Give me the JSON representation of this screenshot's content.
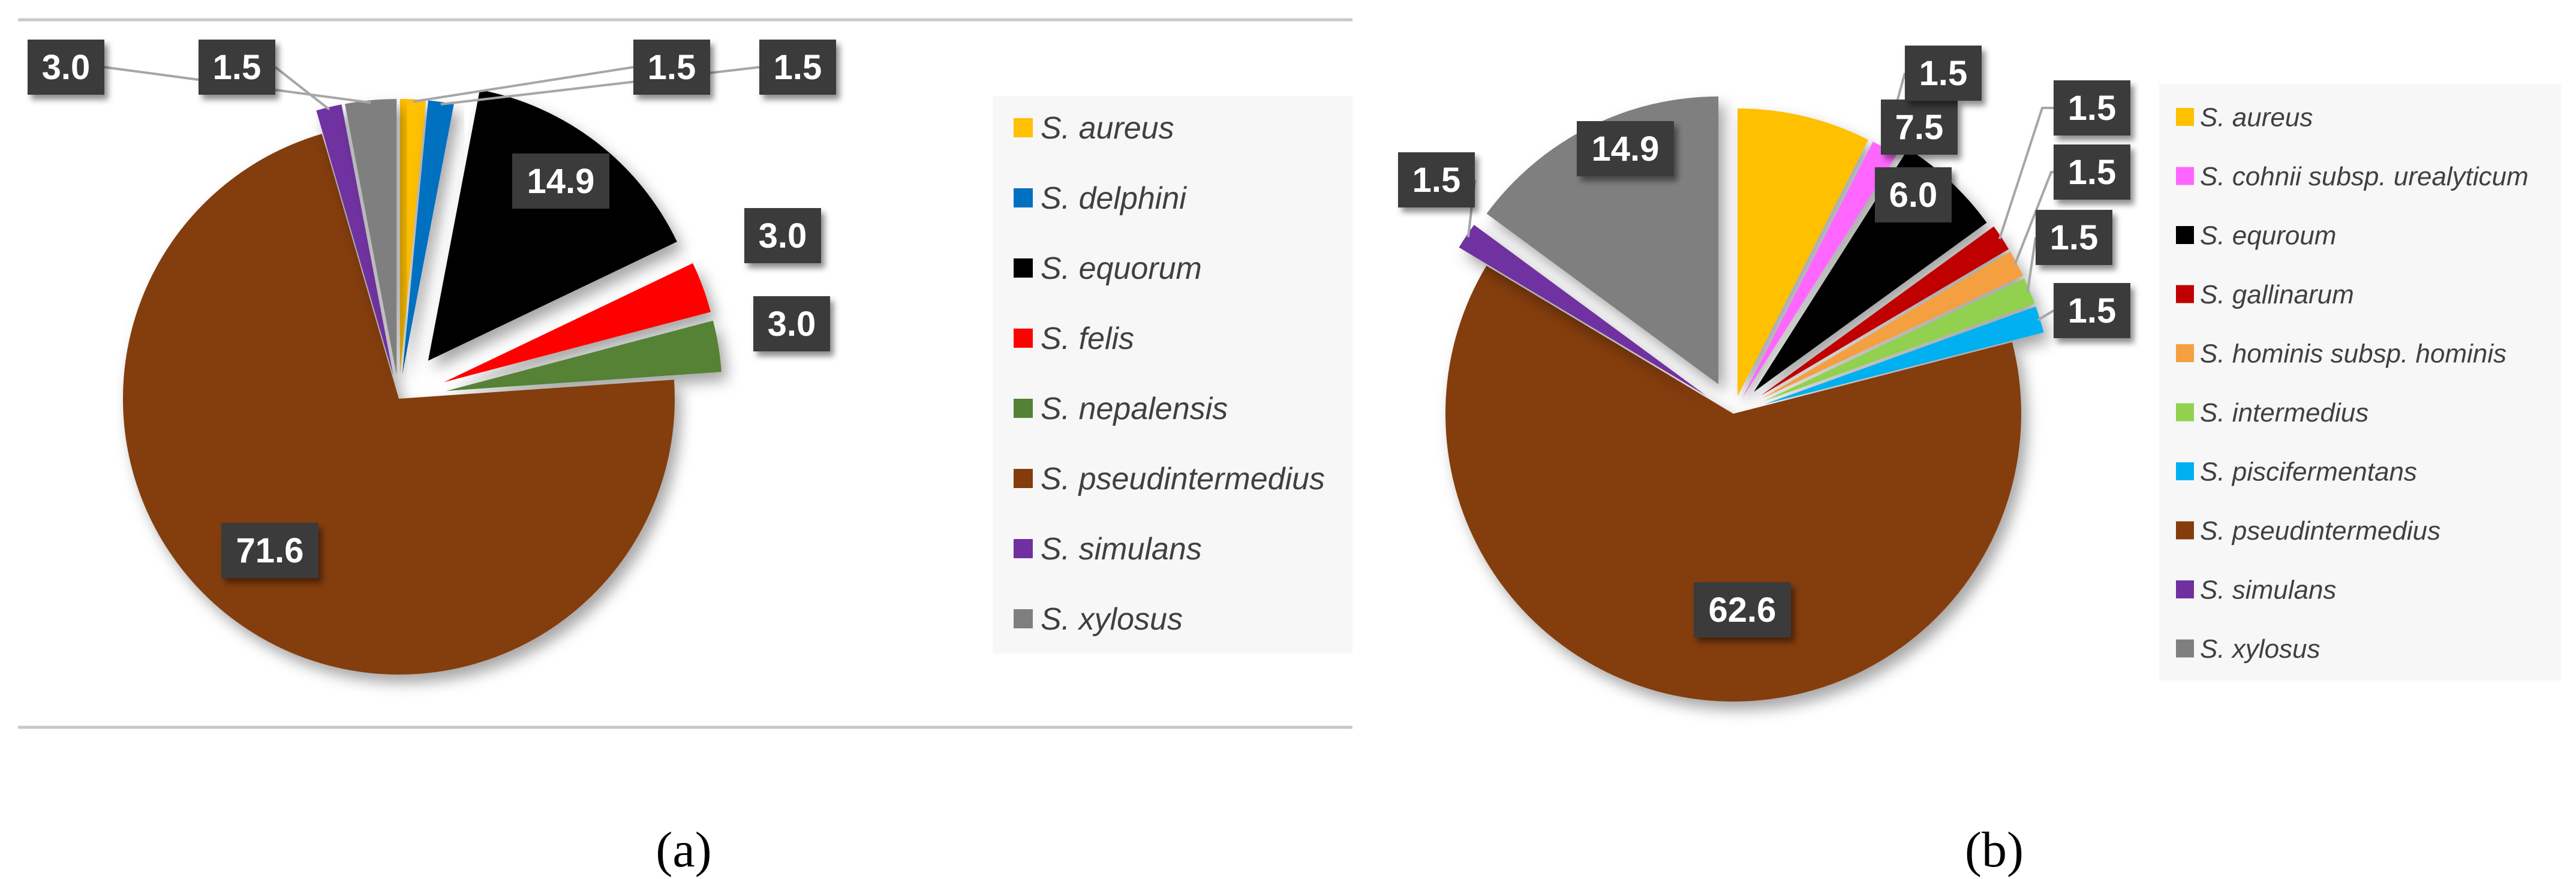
{
  "chart_data": [
    {
      "type": "pie",
      "panel_label": "(a)",
      "legend_position": "right",
      "slices": [
        {
          "name": "S. aureus",
          "value": 1.5,
          "color": "#FFC000"
        },
        {
          "name": "S. delphini",
          "value": 1.5,
          "color": "#0070C0"
        },
        {
          "name": "S. equorum",
          "value": 14.9,
          "color": "#000000"
        },
        {
          "name": "S. felis",
          "value": 3.0,
          "color": "#FF0000"
        },
        {
          "name": "S. nepalensis",
          "value": 3.0,
          "color": "#548235"
        },
        {
          "name": "S. pseudintermedius",
          "value": 71.6,
          "color": "#843C0C"
        },
        {
          "name": "S. simulans",
          "value": 1.5,
          "color": "#7030A0"
        },
        {
          "name": "S. xylosus",
          "value": 3.0,
          "color": "#7F7F7F"
        }
      ]
    },
    {
      "type": "pie",
      "panel_label": "(b)",
      "legend_position": "right",
      "slices": [
        {
          "name": "S. aureus",
          "value": 7.5,
          "color": "#FFC000"
        },
        {
          "name": "S. cohnii subsp. urealyticum",
          "value": 1.5,
          "color": "#FF66FF"
        },
        {
          "name": "S. equroum",
          "value": 6.0,
          "color": "#000000"
        },
        {
          "name": "S. gallinarum",
          "value": 1.5,
          "color": "#C00000"
        },
        {
          "name": "S. hominis subsp. hominis",
          "value": 1.5,
          "color": "#F4A040"
        },
        {
          "name": "S. intermedius",
          "value": 1.5,
          "color": "#92D050"
        },
        {
          "name": "S. piscifermentans",
          "value": 1.5,
          "color": "#00B0F0"
        },
        {
          "name": "S. pseudintermedius",
          "value": 62.6,
          "color": "#843C0C"
        },
        {
          "name": "S. simulans",
          "value": 1.5,
          "color": "#7030A0"
        },
        {
          "name": "S. xylosus",
          "value": 14.9,
          "color": "#7F7F7F"
        }
      ]
    }
  ]
}
